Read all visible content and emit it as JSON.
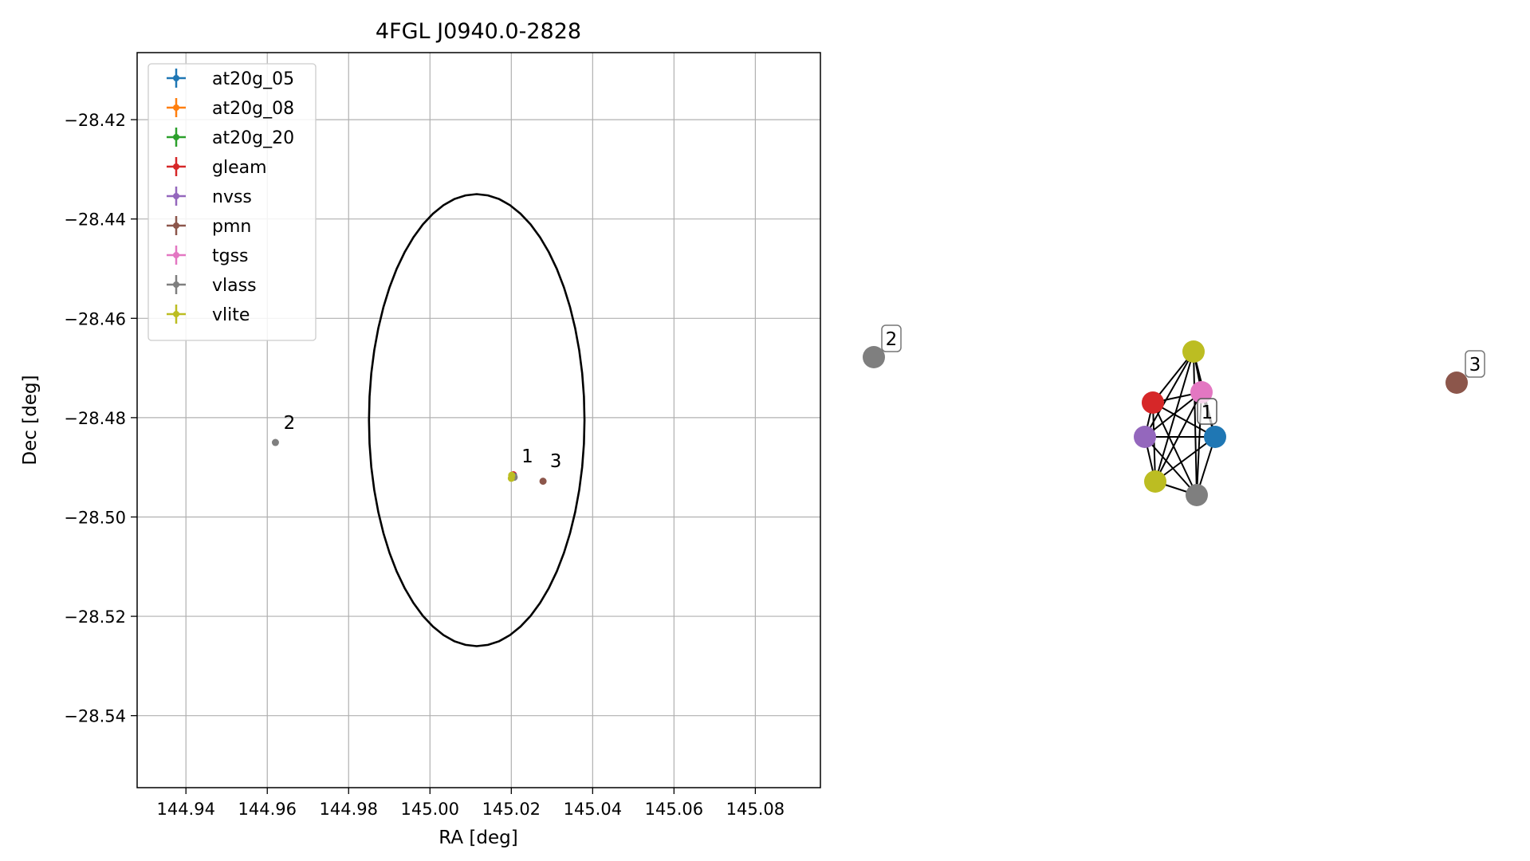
{
  "chart_data": [
    {
      "type": "scatter",
      "title": "4FGL J0940.0-2828",
      "xlabel": "RA [deg]",
      "ylabel": "Dec [deg]",
      "xlim": [
        144.928,
        145.096
      ],
      "ylim": [
        -28.5545,
        -28.4065
      ],
      "x_ticks": [
        "144.94",
        "144.96",
        "144.98",
        "145.00",
        "145.02",
        "145.04",
        "145.06",
        "145.08"
      ],
      "x_tick_values": [
        144.94,
        144.96,
        144.98,
        145.0,
        145.02,
        145.04,
        145.06,
        145.08
      ],
      "y_ticks": [
        "−28.42",
        "−28.44",
        "−28.46",
        "−28.48",
        "−28.50",
        "−28.52",
        "−28.54"
      ],
      "y_tick_values": [
        -28.42,
        -28.44,
        -28.46,
        -28.48,
        -28.5,
        -28.52,
        -28.54
      ],
      "grid": true,
      "legend_placement": "top-left",
      "legend": [
        {
          "label": "at20g_05",
          "color": "#1f77b4"
        },
        {
          "label": "at20g_08",
          "color": "#ff7f0e"
        },
        {
          "label": "at20g_20",
          "color": "#2ca02c"
        },
        {
          "label": "gleam",
          "color": "#d62728"
        },
        {
          "label": "nvss",
          "color": "#9467bd"
        },
        {
          "label": "pmn",
          "color": "#8c564b"
        },
        {
          "label": "tgss",
          "color": "#e377c2"
        },
        {
          "label": "vlass",
          "color": "#7f7f7f"
        },
        {
          "label": "vlite",
          "color": "#bcbd22"
        }
      ],
      "ellipse": {
        "center_ra": 145.0115,
        "center_dec": -28.4805,
        "semi_ra": 0.0265,
        "semi_dec": 0.0455,
        "color": "#000000"
      },
      "points": [
        {
          "series": "gleam",
          "x": 145.0205,
          "y": -28.4915,
          "color": "#d62728"
        },
        {
          "series": "at20g_05",
          "x": 145.0206,
          "y": -28.4918,
          "color": "#1f77b4"
        },
        {
          "series": "nvss",
          "x": 145.0204,
          "y": -28.492,
          "color": "#9467bd"
        },
        {
          "series": "tgss",
          "x": 145.0203,
          "y": -28.4918,
          "color": "#e377c2"
        },
        {
          "series": "vlass",
          "x": 145.0207,
          "y": -28.492,
          "color": "#7f7f7f"
        },
        {
          "series": "vlite",
          "x": 145.0201,
          "y": -28.4916,
          "color": "#bcbd22"
        },
        {
          "series": "vlite",
          "x": 145.02,
          "y": -28.4922,
          "color": "#bcbd22"
        },
        {
          "series": "vlass",
          "x": 144.962,
          "y": -28.485,
          "color": "#7f7f7f"
        },
        {
          "series": "pmn",
          "x": 145.0278,
          "y": -28.4928,
          "color": "#8c564b"
        }
      ],
      "group_labels": [
        {
          "text": "1",
          "x": 145.0225,
          "y": -28.489
        },
        {
          "text": "2",
          "x": 144.964,
          "y": -28.4823
        },
        {
          "text": "3",
          "x": 145.0295,
          "y": -28.49
        }
      ]
    },
    {
      "type": "network",
      "node_groups": [
        {
          "label": "1",
          "members": [
            "vlite",
            "tgss",
            "gleam",
            "nvss",
            "at20g_05",
            "vlite",
            "vlass"
          ]
        },
        {
          "label": "2",
          "members": [
            "vlass"
          ]
        },
        {
          "label": "3",
          "members": [
            "pmn"
          ]
        }
      ],
      "edges": "all pairs within group 1"
    }
  ]
}
